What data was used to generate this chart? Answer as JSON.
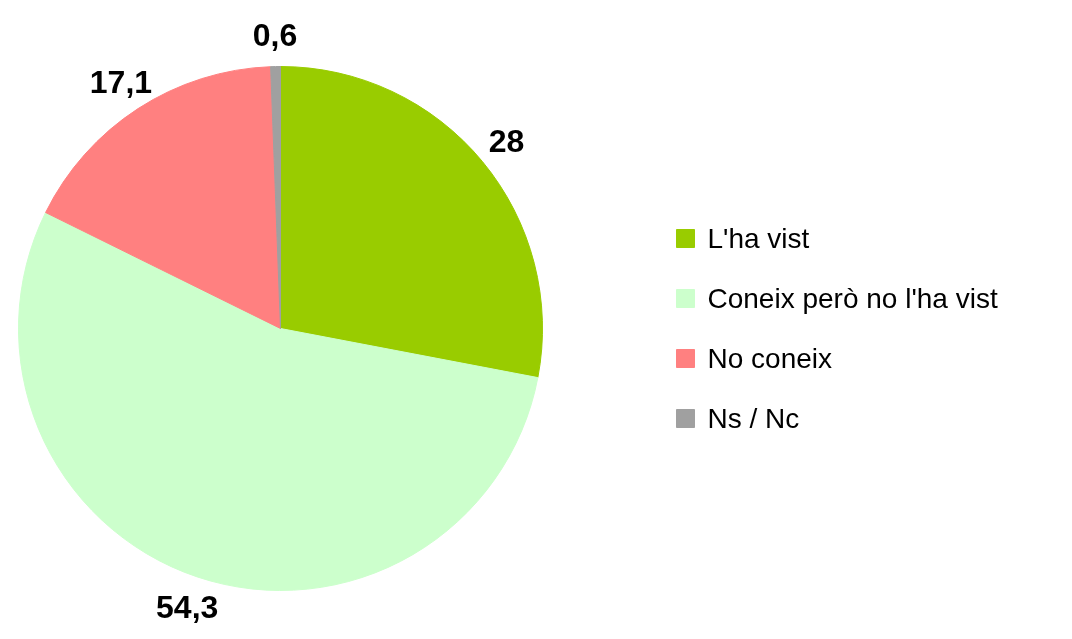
{
  "chart_data": {
    "type": "pie",
    "categories": [
      "L'ha vist",
      "Coneix però no l'ha vist",
      "No coneix",
      "Ns / Nc"
    ],
    "values": [
      28,
      54.3,
      17.1,
      0.6
    ],
    "colors": [
      "#99cc00",
      "#ccffcc",
      "#ff8080",
      "#a0a0a0"
    ],
    "value_labels": [
      "28",
      "54,3",
      "17,1",
      "0,6"
    ],
    "legend": "right"
  }
}
